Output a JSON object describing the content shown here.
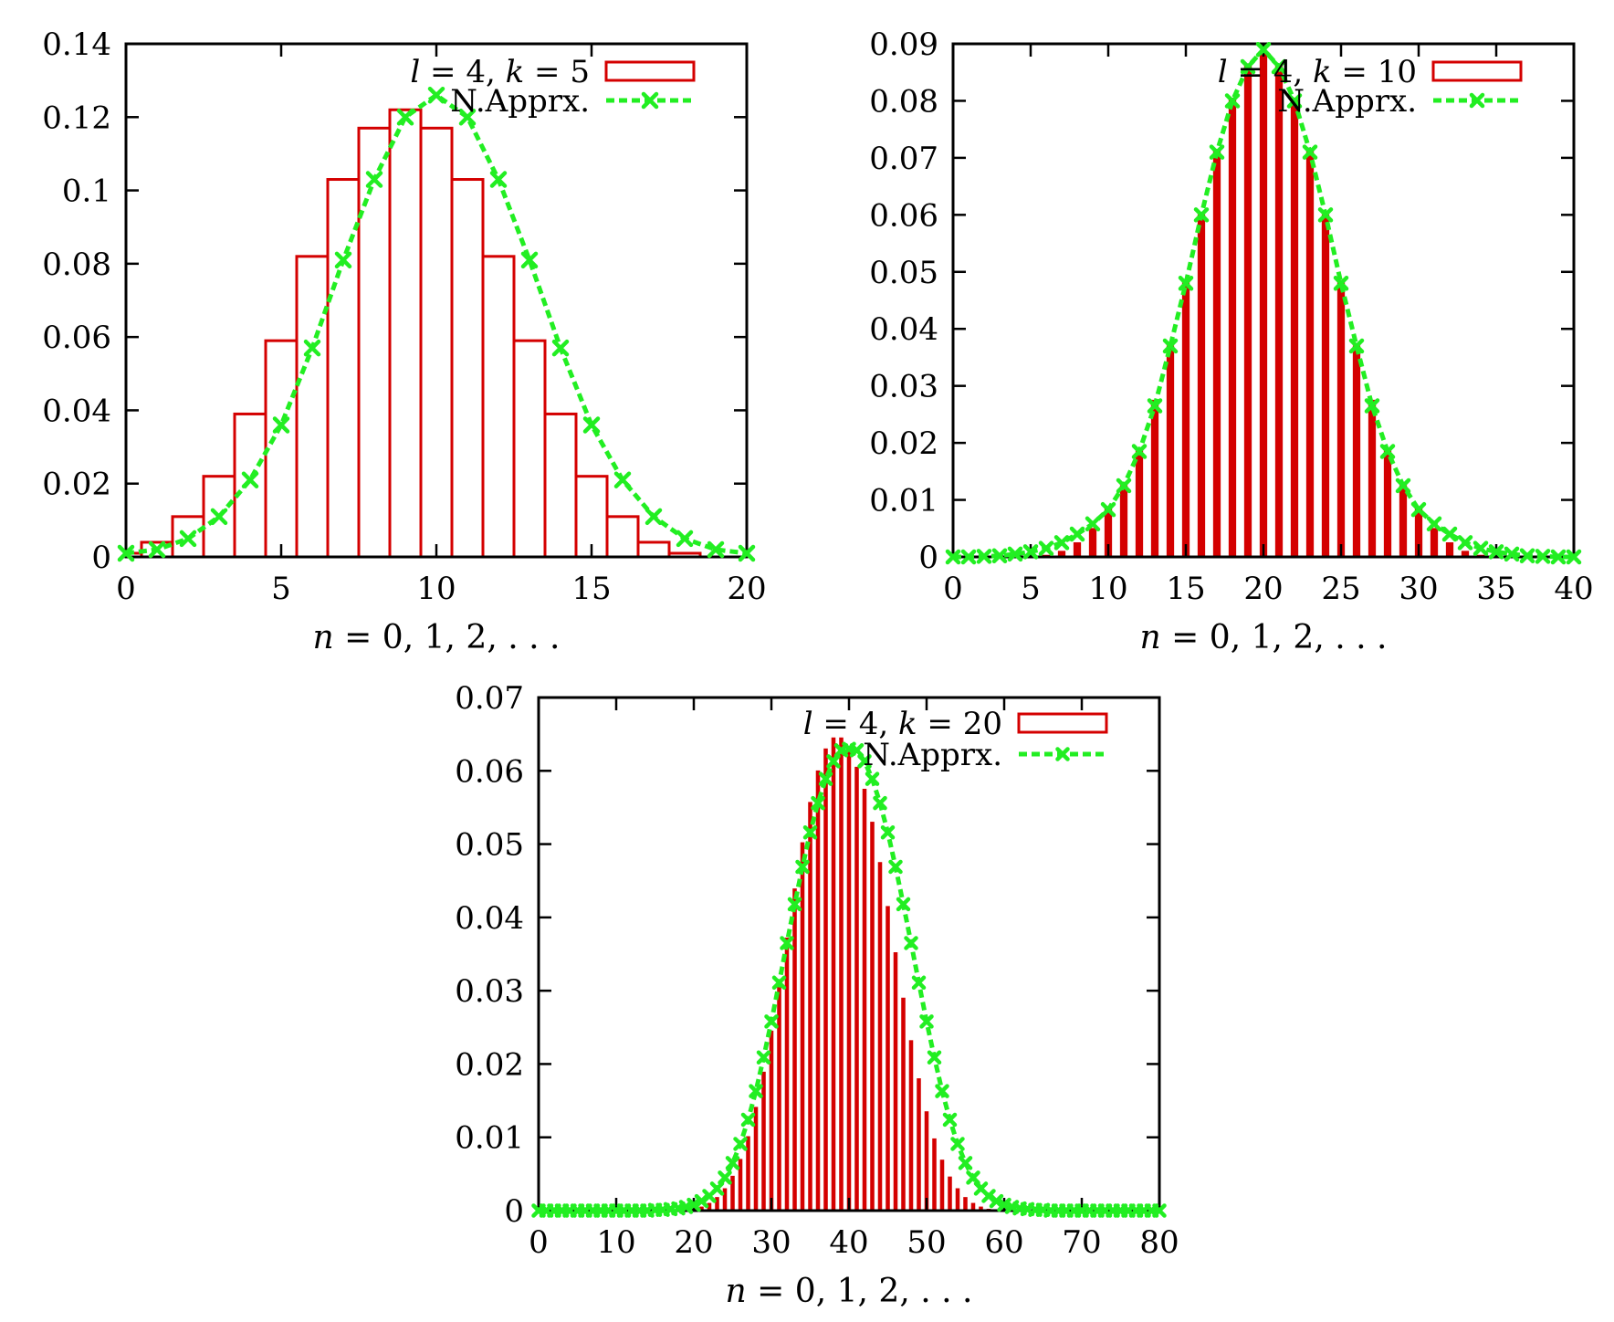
{
  "colors": {
    "bar_stroke": "#d40000",
    "curve": "#22ee22",
    "axis": "#000000",
    "background": "#ffffff"
  },
  "chart_data": [
    {
      "type": "bar",
      "panel": "top-left",
      "xlabel": "n = 0, 1, 2, . . .",
      "ylabel": "",
      "xlim": [
        0,
        20
      ],
      "ylim": [
        0,
        0.14
      ],
      "xticks": [
        "0",
        "5",
        "10",
        "15",
        "20"
      ],
      "yticks": [
        "0",
        "0.02",
        "0.04",
        "0.06",
        "0.08",
        "0.1",
        "0.12",
        "0.14"
      ],
      "legend_position": "top-right",
      "bar_style": "outline",
      "series": [
        {
          "name": "l = 4, k = 5",
          "kind": "histogram",
          "x": [
            0,
            1,
            2,
            3,
            4,
            5,
            6,
            7,
            8,
            9,
            10,
            11,
            12,
            13,
            14,
            15,
            16,
            17,
            18,
            19,
            20
          ],
          "values": [
            0.001,
            0.004,
            0.011,
            0.022,
            0.039,
            0.059,
            0.082,
            0.103,
            0.117,
            0.122,
            0.117,
            0.103,
            0.082,
            0.059,
            0.039,
            0.022,
            0.011,
            0.004,
            0.001,
            0.0,
            0.0
          ]
        },
        {
          "name": "N.Apprx.",
          "kind": "line-points",
          "x": [
            0,
            1,
            2,
            3,
            4,
            5,
            6,
            7,
            8,
            9,
            10,
            11,
            12,
            13,
            14,
            15,
            16,
            17,
            18,
            19,
            20
          ],
          "values": [
            0.001,
            0.002,
            0.005,
            0.011,
            0.021,
            0.036,
            0.057,
            0.081,
            0.103,
            0.12,
            0.126,
            0.12,
            0.103,
            0.081,
            0.057,
            0.036,
            0.021,
            0.011,
            0.005,
            0.002,
            0.001
          ]
        }
      ]
    },
    {
      "type": "bar",
      "panel": "top-right",
      "xlabel": "n = 0, 1, 2, . . .",
      "ylabel": "",
      "xlim": [
        0,
        40
      ],
      "ylim": [
        0,
        0.09
      ],
      "xticks": [
        "0",
        "5",
        "10",
        "15",
        "20",
        "25",
        "30",
        "35",
        "40"
      ],
      "yticks": [
        "0",
        "0.01",
        "0.02",
        "0.03",
        "0.04",
        "0.05",
        "0.06",
        "0.07",
        "0.08",
        "0.09"
      ],
      "legend_position": "top-right",
      "bar_style": "filled-narrow",
      "series": [
        {
          "name": "l = 4, k = 10",
          "kind": "histogram",
          "x": [
            0,
            1,
            2,
            3,
            4,
            5,
            6,
            7,
            8,
            9,
            10,
            11,
            12,
            13,
            14,
            15,
            16,
            17,
            18,
            19,
            20,
            21,
            22,
            23,
            24,
            25,
            26,
            27,
            28,
            29,
            30,
            31,
            32,
            33,
            34,
            35,
            36,
            37,
            38,
            39,
            40
          ],
          "values": [
            0,
            0,
            0,
            0,
            0,
            0,
            0.0003,
            0.001,
            0.0025,
            0.005,
            0.0085,
            0.0125,
            0.019,
            0.0275,
            0.037,
            0.0485,
            0.06,
            0.0715,
            0.0805,
            0.0865,
            0.0885,
            0.0865,
            0.0805,
            0.0715,
            0.06,
            0.0485,
            0.037,
            0.0275,
            0.019,
            0.0125,
            0.0085,
            0.005,
            0.0025,
            0.001,
            0.0003,
            0,
            0,
            0,
            0,
            0,
            0
          ]
        },
        {
          "name": "N.Apprx.",
          "kind": "line-points",
          "x": [
            0,
            1,
            2,
            3,
            4,
            5,
            6,
            7,
            8,
            9,
            10,
            11,
            12,
            13,
            14,
            15,
            16,
            17,
            18,
            19,
            20,
            21,
            22,
            23,
            24,
            25,
            26,
            27,
            28,
            29,
            30,
            31,
            32,
            33,
            34,
            35,
            36,
            37,
            38,
            39,
            40
          ],
          "values": [
            0,
            0,
            0.0001,
            0.0002,
            0.0005,
            0.0009,
            0.0015,
            0.0025,
            0.004,
            0.0058,
            0.0083,
            0.0125,
            0.0185,
            0.0265,
            0.037,
            0.048,
            0.06,
            0.071,
            0.08,
            0.086,
            0.089,
            0.086,
            0.08,
            0.071,
            0.06,
            0.048,
            0.037,
            0.0265,
            0.0185,
            0.0125,
            0.0083,
            0.0058,
            0.004,
            0.0025,
            0.0015,
            0.0009,
            0.0005,
            0.0002,
            0.0001,
            0,
            0
          ]
        }
      ]
    },
    {
      "type": "bar",
      "panel": "bottom-center",
      "xlabel": "n = 0, 1, 2, . . .",
      "ylabel": "",
      "xlim": [
        0,
        80
      ],
      "ylim": [
        0,
        0.07
      ],
      "xticks": [
        "0",
        "10",
        "20",
        "30",
        "40",
        "50",
        "60",
        "70",
        "80"
      ],
      "yticks": [
        "0",
        "0.01",
        "0.02",
        "0.03",
        "0.04",
        "0.05",
        "0.06",
        "0.07"
      ],
      "legend_position": "top-right",
      "bar_style": "filled-narrow",
      "series": [
        {
          "name": "l = 4, k = 20",
          "kind": "histogram",
          "x": [
            0,
            1,
            2,
            3,
            4,
            5,
            6,
            7,
            8,
            9,
            10,
            11,
            12,
            13,
            14,
            15,
            16,
            17,
            18,
            19,
            20,
            21,
            22,
            23,
            24,
            25,
            26,
            27,
            28,
            29,
            30,
            31,
            32,
            33,
            34,
            35,
            36,
            37,
            38,
            39,
            40,
            41,
            42,
            43,
            44,
            45,
            46,
            47,
            48,
            49,
            50,
            51,
            52,
            53,
            54,
            55,
            56,
            57,
            58,
            59,
            60,
            61,
            62,
            63,
            64,
            65,
            66,
            67,
            68,
            69,
            70,
            71,
            72,
            73,
            74,
            75,
            76,
            77,
            78,
            79,
            80
          ],
          "values": [
            0,
            0,
            0,
            0,
            0,
            0,
            0,
            0,
            0,
            0,
            0,
            0,
            0,
            0,
            0,
            0,
            0,
            0,
            0,
            0,
            0.0002,
            0.0005,
            0.001,
            0.0018,
            0.003,
            0.0047,
            0.007,
            0.0101,
            0.0141,
            0.0189,
            0.0245,
            0.0306,
            0.0372,
            0.0439,
            0.0502,
            0.0557,
            0.06,
            0.063,
            0.0645,
            0.0645,
            0.063,
            0.0605,
            0.0575,
            0.053,
            0.0475,
            0.0415,
            0.0352,
            0.029,
            0.0232,
            0.018,
            0.0135,
            0.0098,
            0.0069,
            0.0046,
            0.003,
            0.0018,
            0.001,
            0.0005,
            0.0002,
            0,
            0,
            0,
            0,
            0,
            0,
            0,
            0,
            0,
            0,
            0,
            0,
            0,
            0,
            0,
            0,
            0,
            0,
            0,
            0,
            0,
            0
          ]
        },
        {
          "name": "N.Apprx.",
          "kind": "line-points",
          "x": [
            0,
            1,
            2,
            3,
            4,
            5,
            6,
            7,
            8,
            9,
            10,
            11,
            12,
            13,
            14,
            15,
            16,
            17,
            18,
            19,
            20,
            21,
            22,
            23,
            24,
            25,
            26,
            27,
            28,
            29,
            30,
            31,
            32,
            33,
            34,
            35,
            36,
            37,
            38,
            39,
            40,
            41,
            42,
            43,
            44,
            45,
            46,
            47,
            48,
            49,
            50,
            51,
            52,
            53,
            54,
            55,
            56,
            57,
            58,
            59,
            60,
            61,
            62,
            63,
            64,
            65,
            66,
            67,
            68,
            69,
            70,
            71,
            72,
            73,
            74,
            75,
            76,
            77,
            78,
            79,
            80
          ],
          "values": [
            0,
            0,
            0,
            0,
            0,
            0,
            0,
            0,
            0,
            0,
            0,
            0,
            0,
            0,
            0,
            0.0001,
            0.0001,
            0.0002,
            0.0003,
            0.0005,
            0.0008,
            0.0013,
            0.002,
            0.003,
            0.0045,
            0.0065,
            0.0091,
            0.0124,
            0.0163,
            0.0209,
            0.0258,
            0.0311,
            0.0365,
            0.0418,
            0.0469,
            0.0516,
            0.0556,
            0.0589,
            0.0613,
            0.0628,
            0.063,
            0.0628,
            0.0613,
            0.0589,
            0.0556,
            0.0516,
            0.0469,
            0.0418,
            0.0365,
            0.0311,
            0.0258,
            0.0209,
            0.0163,
            0.0124,
            0.0091,
            0.0065,
            0.0045,
            0.003,
            0.002,
            0.0013,
            0.0008,
            0.0005,
            0.0003,
            0.0002,
            0.0001,
            0.0001,
            0,
            0,
            0,
            0,
            0,
            0,
            0,
            0,
            0,
            0,
            0,
            0,
            0,
            0,
            0
          ]
        }
      ]
    }
  ]
}
